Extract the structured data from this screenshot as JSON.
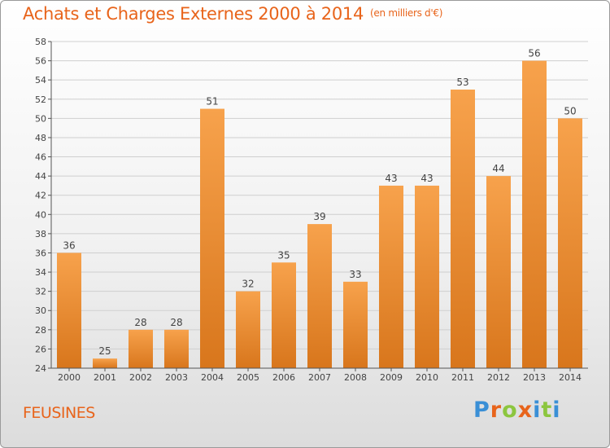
{
  "header": {
    "title": "Achats et Charges Externes 2000 à 2014",
    "unit": "(en milliers d'€)"
  },
  "footer": {
    "commune": "FEUSINES",
    "logo_text": "Proxiti"
  },
  "colors": {
    "accent": "#e8641b",
    "bar_light": "#f7a24c",
    "bar_dark": "#d8761c"
  },
  "chart_data": {
    "type": "bar",
    "title": "Achats et Charges Externes 2000 à 2014",
    "subtitle": "(en milliers d'€)",
    "xlabel": "",
    "ylabel": "",
    "categories": [
      "2000",
      "2001",
      "2002",
      "2003",
      "2004",
      "2005",
      "2006",
      "2007",
      "2008",
      "2009",
      "2010",
      "2011",
      "2012",
      "2013",
      "2014"
    ],
    "values": [
      36,
      25,
      28,
      28,
      51,
      32,
      35,
      39,
      33,
      43,
      43,
      53,
      44,
      56,
      50
    ],
    "data_labels": [
      "36",
      "25",
      "28",
      "28",
      "51",
      "32",
      "35",
      "39",
      "33",
      "43",
      "43",
      "53",
      "44",
      "56",
      "50"
    ],
    "ylim": [
      24,
      58
    ],
    "yticks": [
      "24",
      "26",
      "28",
      "30",
      "32",
      "34",
      "36",
      "38",
      "40",
      "42",
      "44",
      "46",
      "48",
      "50",
      "52",
      "54",
      "56",
      "58"
    ],
    "grid": true,
    "legend": "none"
  }
}
